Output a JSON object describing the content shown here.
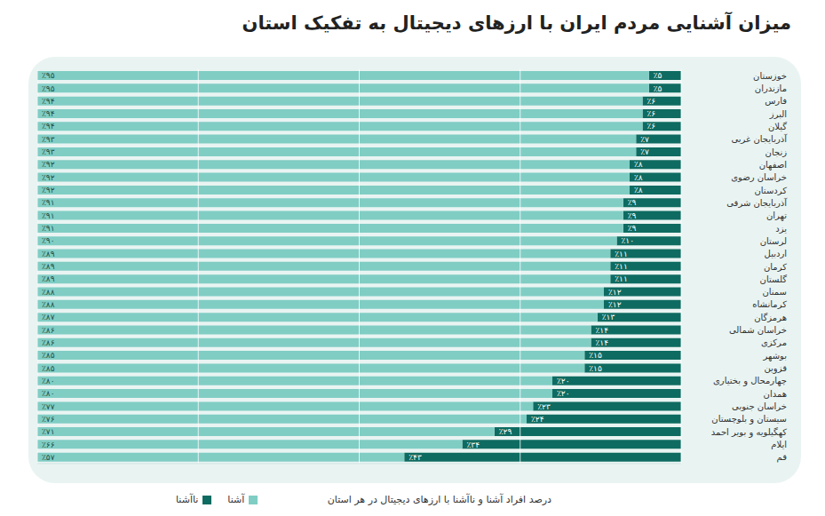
{
  "chart_data": {
    "type": "bar",
    "title": "میزان آشنایی مردم ایران با ارزهای دیجیتال به تفکیک استان",
    "x_label": "درصد افراد آشنا و ناآشنا با ارزهای دیجیتال در هر استان",
    "orientation": "horizontal",
    "stacked": true,
    "grid": true,
    "legend": "bottom-left",
    "tick_labels": "y",
    "data_labels": true,
    "xlim": [
      0,
      100
    ],
    "xticks": [
      0,
      25,
      50,
      75,
      100
    ],
    "categories": [
      "خوزستان",
      "مازندران",
      "فارس",
      "البرز",
      "گیلان",
      "آذربایجان غربی",
      "زنجان",
      "اصفهان",
      "خراسان رضوی",
      "کردستان",
      "آذربایجان شرقی",
      "تهران",
      "یزد",
      "لرستان",
      "اردبیل",
      "کرمان",
      "گلستان",
      "سمنان",
      "کرمانشاه",
      "هرمزگان",
      "خراسان شمالی",
      "مرکزی",
      "بوشهر",
      "قزوین",
      "چهارمحال و بختیاری",
      "همدان",
      "خراسان جنوبی",
      "سیستان و بلوچستان",
      "کهگیلویه و بویر احمد",
      "ایلام",
      "قم"
    ],
    "series": [
      {
        "name": "ناآشنا",
        "color": "#0e6b61",
        "values": [
          5,
          5,
          6,
          6,
          6,
          7,
          7,
          8,
          8,
          8,
          9,
          9,
          9,
          10,
          11,
          11,
          11,
          12,
          12,
          13,
          14,
          14,
          15,
          15,
          20,
          20,
          23,
          24,
          29,
          34,
          43
        ],
        "value_labels": [
          "٪۵",
          "٪۵",
          "٪۶",
          "٪۶",
          "٪۶",
          "٪۷",
          "٪۷",
          "٪۸",
          "٪۸",
          "٪۸",
          "٪۹",
          "٪۹",
          "٪۹",
          "٪۱۰",
          "٪۱۱",
          "٪۱۱",
          "٪۱۱",
          "٪۱۲",
          "٪۱۲",
          "٪۱۳",
          "٪۱۴",
          "٪۱۴",
          "٪۱۵",
          "٪۱۵",
          "٪۲۰",
          "٪۲۰",
          "٪۲۳",
          "٪۲۴",
          "٪۲۹",
          "٪۳۴",
          "٪۴۳"
        ]
      },
      {
        "name": "آشنا",
        "color": "#80cdc4",
        "values": [
          95,
          95,
          94,
          94,
          94,
          93,
          93,
          92,
          92,
          92,
          91,
          91,
          91,
          90,
          89,
          89,
          89,
          88,
          88,
          87,
          86,
          86,
          85,
          85,
          80,
          80,
          77,
          76,
          71,
          66,
          57
        ],
        "value_labels": [
          "٪۹۵",
          "٪۹۵",
          "٪۹۴",
          "٪۹۴",
          "٪۹۴",
          "٪۹۳",
          "٪۹۳",
          "٪۹۲",
          "٪۹۲",
          "٪۹۲",
          "٪۹۱",
          "٪۹۱",
          "٪۹۱",
          "٪۹۰",
          "٪۸۹",
          "٪۸۹",
          "٪۸۹",
          "٪۸۸",
          "٪۸۸",
          "٪۸۷",
          "٪۸۶",
          "٪۸۶",
          "٪۸۵",
          "٪۸۵",
          "٪۸۰",
          "٪۸۰",
          "٪۷۷",
          "٪۷۶",
          "٪۷۱",
          "٪۶۶",
          "٪۵۷"
        ]
      }
    ]
  }
}
